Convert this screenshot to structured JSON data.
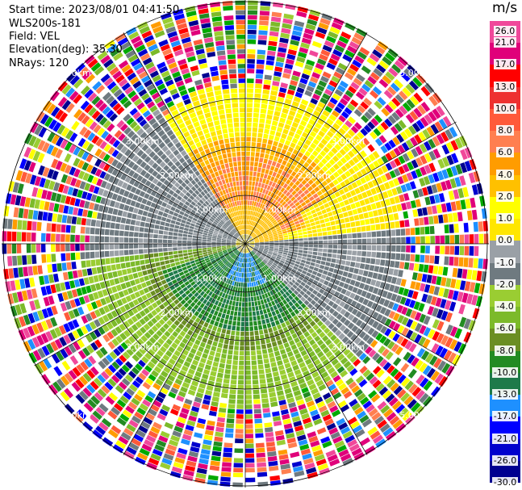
{
  "header": {
    "start_time": "Start time: 2023/08/01 04:41:50",
    "instrument": "WLS200s-181",
    "field": "Field: VEL",
    "elevation": "Elevation(deg): 35.30",
    "nrays": "NRays: 120"
  },
  "colorbar": {
    "unit": "m/s",
    "levels": [
      {
        "label": "26.0",
        "color": "#f0489a"
      },
      {
        "label": "21.0",
        "color": "#e0007a"
      },
      {
        "label": "17.0",
        "color": "#ff0000"
      },
      {
        "label": "13.0",
        "color": "#ee3030"
      },
      {
        "label": "10.0",
        "color": "#ff5a3a"
      },
      {
        "label": "8.0",
        "color": "#ff7f50"
      },
      {
        "label": "6.0",
        "color": "#ff9c00"
      },
      {
        "label": "4.0",
        "color": "#ffc000"
      },
      {
        "label": "2.0",
        "color": "#ffff00"
      },
      {
        "label": "1.0",
        "color": "#ffe600"
      },
      {
        "label": "0.0",
        "color": "#9aa0a6"
      },
      {
        "label": "-1.0",
        "color": "#6f7a80"
      },
      {
        "label": "-2.0",
        "color": "#9acd32"
      },
      {
        "label": "-4.0",
        "color": "#7cba2a"
      },
      {
        "label": "-6.0",
        "color": "#6b8e23"
      },
      {
        "label": "-8.0",
        "color": "#228b22"
      },
      {
        "label": "-10.0",
        "color": "#1e7a4a"
      },
      {
        "label": "-13.0",
        "color": "#1e90ff"
      },
      {
        "label": "-17.0",
        "color": "#0000ff"
      },
      {
        "label": "-21.0",
        "color": "#0000cd"
      },
      {
        "label": "-26.0",
        "color": "#000090"
      },
      {
        "label": "-30.0",
        "color": "#101050"
      }
    ]
  },
  "chart_data": {
    "type": "heatmap",
    "projection": "polar PPI",
    "field": "VEL",
    "unit": "m/s",
    "rays": 120,
    "range_rings_km": [
      1.0,
      2.0,
      3.0,
      5.0
    ],
    "range_labels": {
      "ring_1": "1.00km",
      "ring_2": "2.00km",
      "ring_3": "3.00km",
      "ring_5": "5.00km"
    },
    "spoke_angles_deg": [
      0,
      30,
      60,
      90,
      120,
      150,
      180,
      210,
      240,
      270,
      300,
      330
    ],
    "pattern": {
      "upper_half": "positive velocities (yellow to orange/salmon, up to ~8 m/s)",
      "lower_half": "negative velocities (green, dark green, blue core near -10 to -13 m/s)",
      "outer_ring": "noise beyond ~3.3 km"
    }
  }
}
